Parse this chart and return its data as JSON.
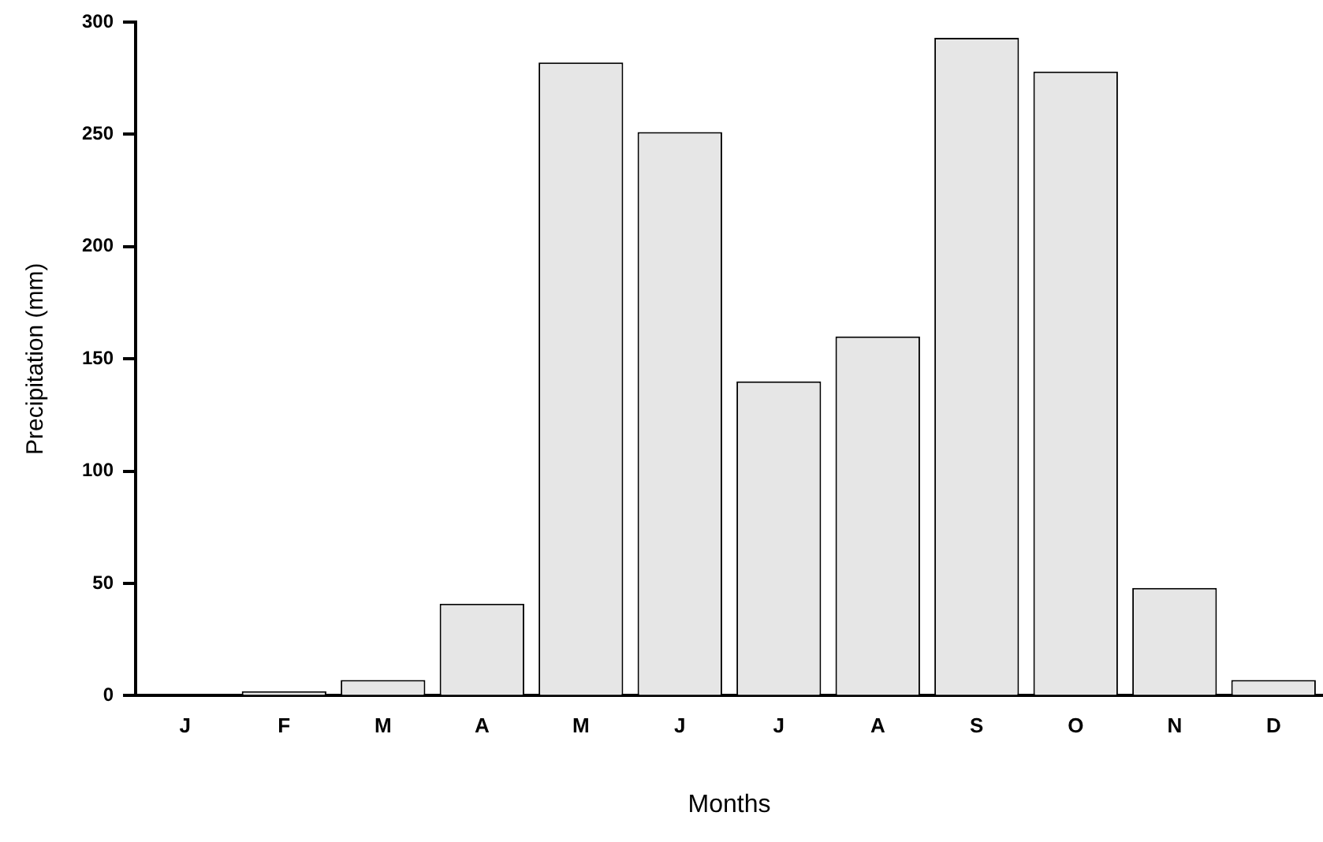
{
  "chart_data": {
    "type": "bar",
    "xlabel": "Months",
    "ylabel": "Precipitation (mm)",
    "categories": [
      "J",
      "F",
      "M",
      "A",
      "M",
      "J",
      "J",
      "A",
      "S",
      "O",
      "N",
      "D"
    ],
    "values": [
      0,
      2,
      7,
      41,
      282,
      251,
      140,
      160,
      293,
      278,
      48,
      7
    ],
    "color": "#e6e6e6",
    "ylim": [
      0,
      300
    ],
    "yticks": [
      0,
      50,
      100,
      150,
      200,
      250,
      300
    ],
    "grid": false,
    "legend": false
  }
}
